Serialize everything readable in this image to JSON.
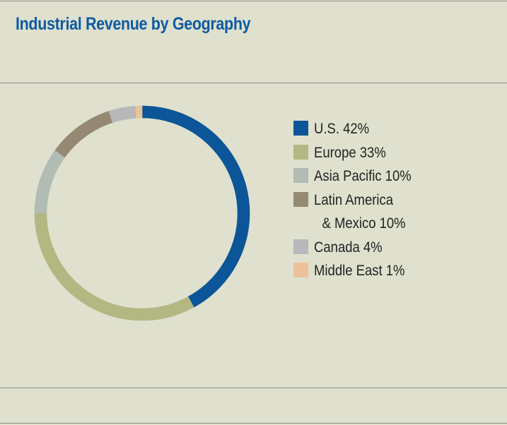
{
  "chart_data": {
    "type": "pie",
    "style": "donut",
    "title": "Industrial Revenue by Geography",
    "legend_position": "right",
    "categories": [
      "U.S.",
      "Europe",
      "Asia Pacific",
      "Latin America & Mexico",
      "Canada",
      "Middle East"
    ],
    "values": [
      42,
      33,
      10,
      10,
      4,
      1
    ],
    "unit": "%",
    "colors": [
      "#0c5598",
      "#b3b883",
      "#b0bcb4",
      "#968973",
      "#b7b8b9",
      "#ecc29a"
    ],
    "legend": [
      {
        "lines": [
          "U.S. 42%"
        ]
      },
      {
        "lines": [
          "Europe 33%"
        ]
      },
      {
        "lines": [
          "Asia Pacific 10%"
        ]
      },
      {
        "lines": [
          "Latin America",
          "& Mexico 10%"
        ]
      },
      {
        "lines": [
          "Canada 4%"
        ]
      },
      {
        "lines": [
          "Middle East 1%"
        ]
      }
    ]
  }
}
